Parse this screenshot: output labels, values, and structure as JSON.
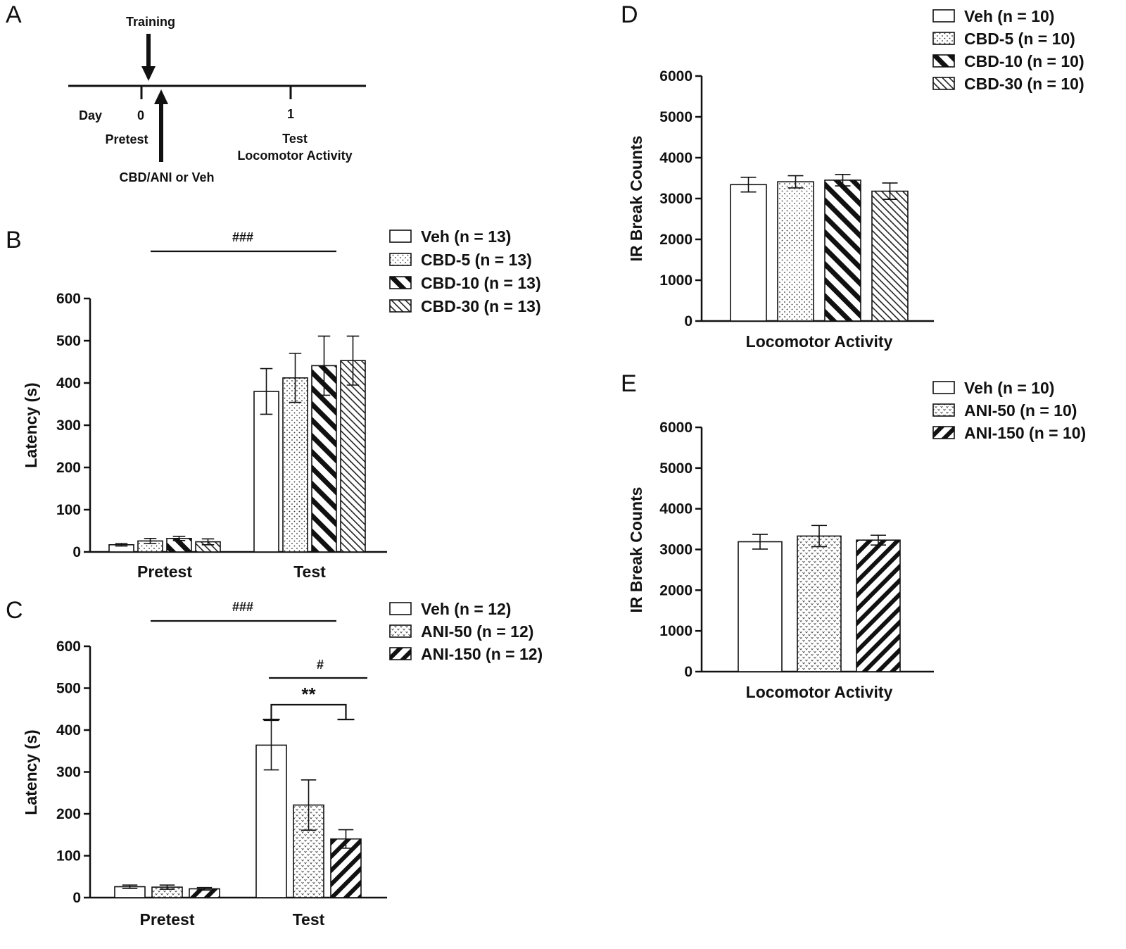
{
  "panels": {
    "A": {
      "label": "A",
      "labels": {
        "training": "Training",
        "day": "Day",
        "day0": "0",
        "day1": "1",
        "pretest": "Pretest",
        "treatment": "CBD/ANI or Veh",
        "test": "Test",
        "locomotor": "Locomotor Activity"
      }
    },
    "B": {
      "label": "B"
    },
    "C": {
      "label": "C"
    },
    "D": {
      "label": "D"
    },
    "E": {
      "label": "E"
    }
  },
  "chart_data": [
    {
      "panel": "B",
      "type": "bar",
      "categories": [
        "Pretest",
        "Test"
      ],
      "ylabel": "Latency (s)",
      "ylim": [
        0,
        600
      ],
      "yticks": [
        0,
        100,
        200,
        300,
        400,
        500,
        600
      ],
      "legend_position": "top-right",
      "series": [
        {
          "name": "Veh (n = 13)",
          "pattern": "empty",
          "values": [
            17,
            380
          ],
          "errors": [
            3,
            54
          ]
        },
        {
          "name": "CBD-5 (n = 13)",
          "pattern": "dots",
          "values": [
            26,
            412
          ],
          "errors": [
            6,
            58
          ]
        },
        {
          "name": "CBD-10 (n = 13)",
          "pattern": "thick-diagonal",
          "values": [
            32,
            441
          ],
          "errors": [
            5,
            70
          ]
        },
        {
          "name": "CBD-30 (n = 13)",
          "pattern": "thin-diagonal",
          "values": [
            24,
            453
          ],
          "errors": [
            7,
            58
          ]
        }
      ],
      "annotations": [
        {
          "text": "###",
          "spans": [
            "Pretest",
            "Test"
          ]
        }
      ]
    },
    {
      "panel": "C",
      "type": "bar",
      "categories": [
        "Pretest",
        "Test"
      ],
      "ylabel": "Latency (s)",
      "ylim": [
        0,
        600
      ],
      "yticks": [
        0,
        100,
        200,
        300,
        400,
        500,
        600
      ],
      "legend_position": "top-right",
      "series": [
        {
          "name": "Veh (n = 12)",
          "pattern": "empty",
          "values": [
            26,
            364
          ],
          "errors": [
            4,
            59
          ]
        },
        {
          "name": "ANI-50 (n = 12)",
          "pattern": "stipple",
          "values": [
            25,
            221
          ],
          "errors": [
            5,
            60
          ]
        },
        {
          "name": "ANI-150  (n = 12)",
          "pattern": "thick-stripes",
          "values": [
            21,
            140
          ],
          "errors": [
            3,
            22
          ]
        }
      ],
      "annotations": [
        {
          "text": "###",
          "spans": [
            "Pretest",
            "Test"
          ]
        },
        {
          "text": "#",
          "spans": [
            "Test"
          ]
        },
        {
          "text": "**",
          "compares": [
            "Veh (n = 12)",
            "ANI-150  (n = 12)"
          ]
        }
      ]
    },
    {
      "panel": "D",
      "type": "bar",
      "categories": [
        "Locomotor Activity"
      ],
      "ylabel": "IR Break Counts",
      "ylim": [
        0,
        6000
      ],
      "yticks": [
        0,
        1000,
        2000,
        3000,
        4000,
        5000,
        6000
      ],
      "legend_position": "top-right",
      "series": [
        {
          "name": "Veh (n = 10)",
          "pattern": "empty",
          "values": [
            3340
          ],
          "errors": [
            180
          ]
        },
        {
          "name": "CBD-5 (n = 10)",
          "pattern": "dots",
          "values": [
            3410
          ],
          "errors": [
            150
          ]
        },
        {
          "name": "CBD-10 (n = 10)",
          "pattern": "thick-diagonal",
          "values": [
            3450
          ],
          "errors": [
            140
          ]
        },
        {
          "name": "CBD-30 (n = 10)",
          "pattern": "thin-diagonal",
          "values": [
            3180
          ],
          "errors": [
            200
          ]
        }
      ]
    },
    {
      "panel": "E",
      "type": "bar",
      "categories": [
        "Locomotor Activity"
      ],
      "ylabel": "IR Break Counts",
      "ylim": [
        0,
        6000
      ],
      "yticks": [
        0,
        1000,
        2000,
        3000,
        4000,
        5000,
        6000
      ],
      "legend_position": "top-right",
      "series": [
        {
          "name": "Veh (n = 10)",
          "pattern": "empty",
          "values": [
            3190
          ],
          "errors": [
            180
          ]
        },
        {
          "name": "ANI-50 (n = 10)",
          "pattern": "stipple",
          "values": [
            3330
          ],
          "errors": [
            260
          ]
        },
        {
          "name": "ANI-150 (n = 10)",
          "pattern": "thick-stripes",
          "values": [
            3230
          ],
          "errors": [
            120
          ]
        }
      ]
    }
  ]
}
